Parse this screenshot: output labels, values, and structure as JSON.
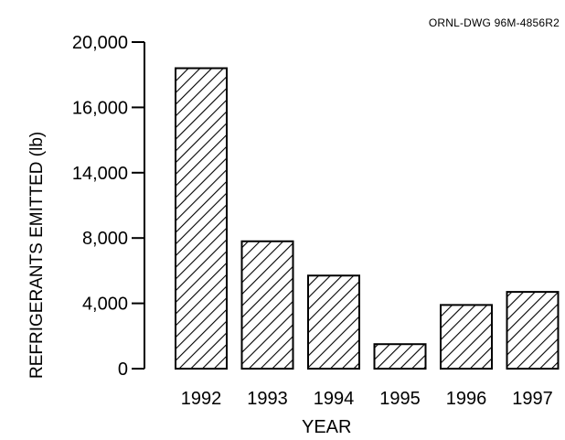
{
  "drawing_id": "ORNL-DWG 96M-4856R2",
  "chart_data": {
    "type": "bar",
    "title": "",
    "xlabel": "YEAR",
    "ylabel": "REFRIGERANTS EMITTED (lb)",
    "categories": [
      "1992",
      "1993",
      "1994",
      "1995",
      "1996",
      "1997"
    ],
    "values": [
      18400,
      7800,
      5700,
      1500,
      3900,
      4700
    ],
    "yticks": [
      {
        "label": "0",
        "value": 0
      },
      {
        "label": "4,000",
        "value": 4000
      },
      {
        "label": "8,000",
        "value": 8000
      },
      {
        "label": "14,000",
        "value": 14000
      },
      {
        "label": "16,000",
        "value": 16000
      },
      {
        "label": "20,000",
        "value": 20000
      }
    ],
    "ylim": [
      0,
      20000
    ],
    "bar_fill": "diagonal-hatch",
    "grid": false,
    "colors": {
      "stroke": "#000000",
      "background": "#ffffff"
    }
  }
}
